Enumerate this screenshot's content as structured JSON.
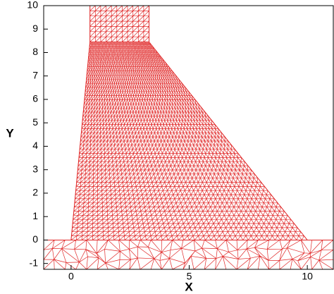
{
  "chart_data": {
    "type": "mesh",
    "xlabel": "X",
    "ylabel": "Y",
    "xlim": [
      -1.16,
      11.1
    ],
    "ylim": [
      -1.25,
      10
    ],
    "xticks": [
      0,
      5,
      10
    ],
    "yticks": [
      -1,
      0,
      1,
      2,
      3,
      4,
      5,
      6,
      7,
      8,
      9,
      10
    ],
    "color": "#e02828",
    "regions": [
      {
        "structured": true,
        "vertices": [
          [
            0,
            0
          ],
          [
            10,
            0
          ],
          [
            3.3,
            8.45
          ],
          [
            0.8,
            8.45
          ]
        ]
      },
      {
        "structured": true,
        "vertices": [
          [
            0.8,
            8.45
          ],
          [
            3.3,
            8.45
          ],
          [
            3.3,
            10
          ],
          [
            0.8,
            10
          ]
        ]
      },
      {
        "structured": false,
        "vertices": [
          [
            -1.16,
            -1.25
          ],
          [
            11.1,
            -1.25
          ],
          [
            11.1,
            0
          ],
          [
            -1.16,
            0
          ]
        ]
      }
    ]
  }
}
